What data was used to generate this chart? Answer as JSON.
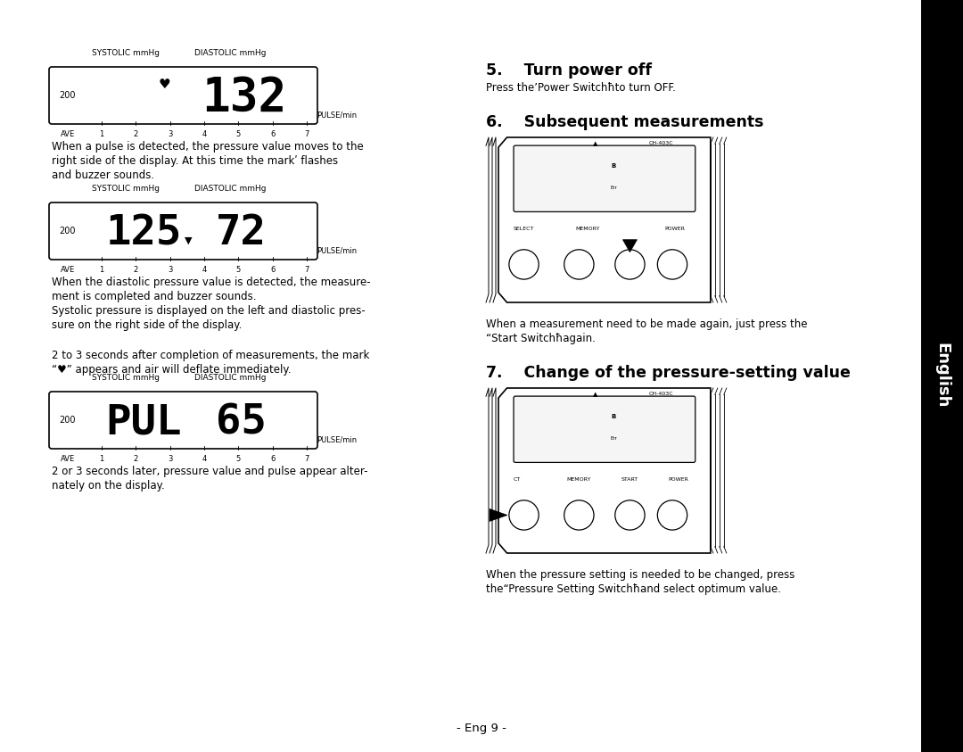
{
  "bg_color": "#ffffff",
  "title_5": "5.    Turn power off",
  "body_5": "Press the’Power Switchħto turn OFF.",
  "title_6": "6.    Subsequent measurements",
  "body_6a": "When a measurement need to be made again, just press the",
  "body_6b": "“Start Switchħagain.",
  "title_7": "7.    Change of the pressure-setting value",
  "body_7a": "When the pressure setting is needed to be changed, press",
  "body_7b": "the“Pressure Setting Switchħand select optimum value.",
  "sidebar_text": "English",
  "footer_text": "- Eng 9 -",
  "display_label_left": "SYSTOLIC mmHg",
  "display_label_right": "DIASTOLIC mmHg",
  "display_pulse_label": "PULSE/min",
  "display_ave_labels": [
    "AVE",
    "1",
    "2",
    "3",
    "4",
    "5",
    "6",
    "7"
  ],
  "display1_value": "132",
  "display1_left_num": "200",
  "display2_val_left": "125",
  "display2_val_right": "72",
  "display2_left_num": "200",
  "display3_val_left": "PUL",
  "display3_val_right": "65",
  "display3_left_num": "200",
  "para1_lines": [
    "When a pulse is detected, the pressure value moves to the",
    "right side of the display. At this time the markʹ flashes",
    "and buzzer sounds."
  ],
  "para2_lines": [
    "When the diastolic pressure value is detected, the measure-",
    "ment is completed and buzzer sounds.",
    "Systolic pressure is displayed on the left and diastolic pres-",
    "sure on the right side of the display."
  ],
  "para3_lines": [
    "2 to 3 seconds after completion of measurements, the mark",
    "“♥” appears and air will deflate immediately."
  ],
  "para4_lines": [
    "2 or 3 seconds later, pressure value and pulse appear alter-",
    "nately on the display."
  ]
}
